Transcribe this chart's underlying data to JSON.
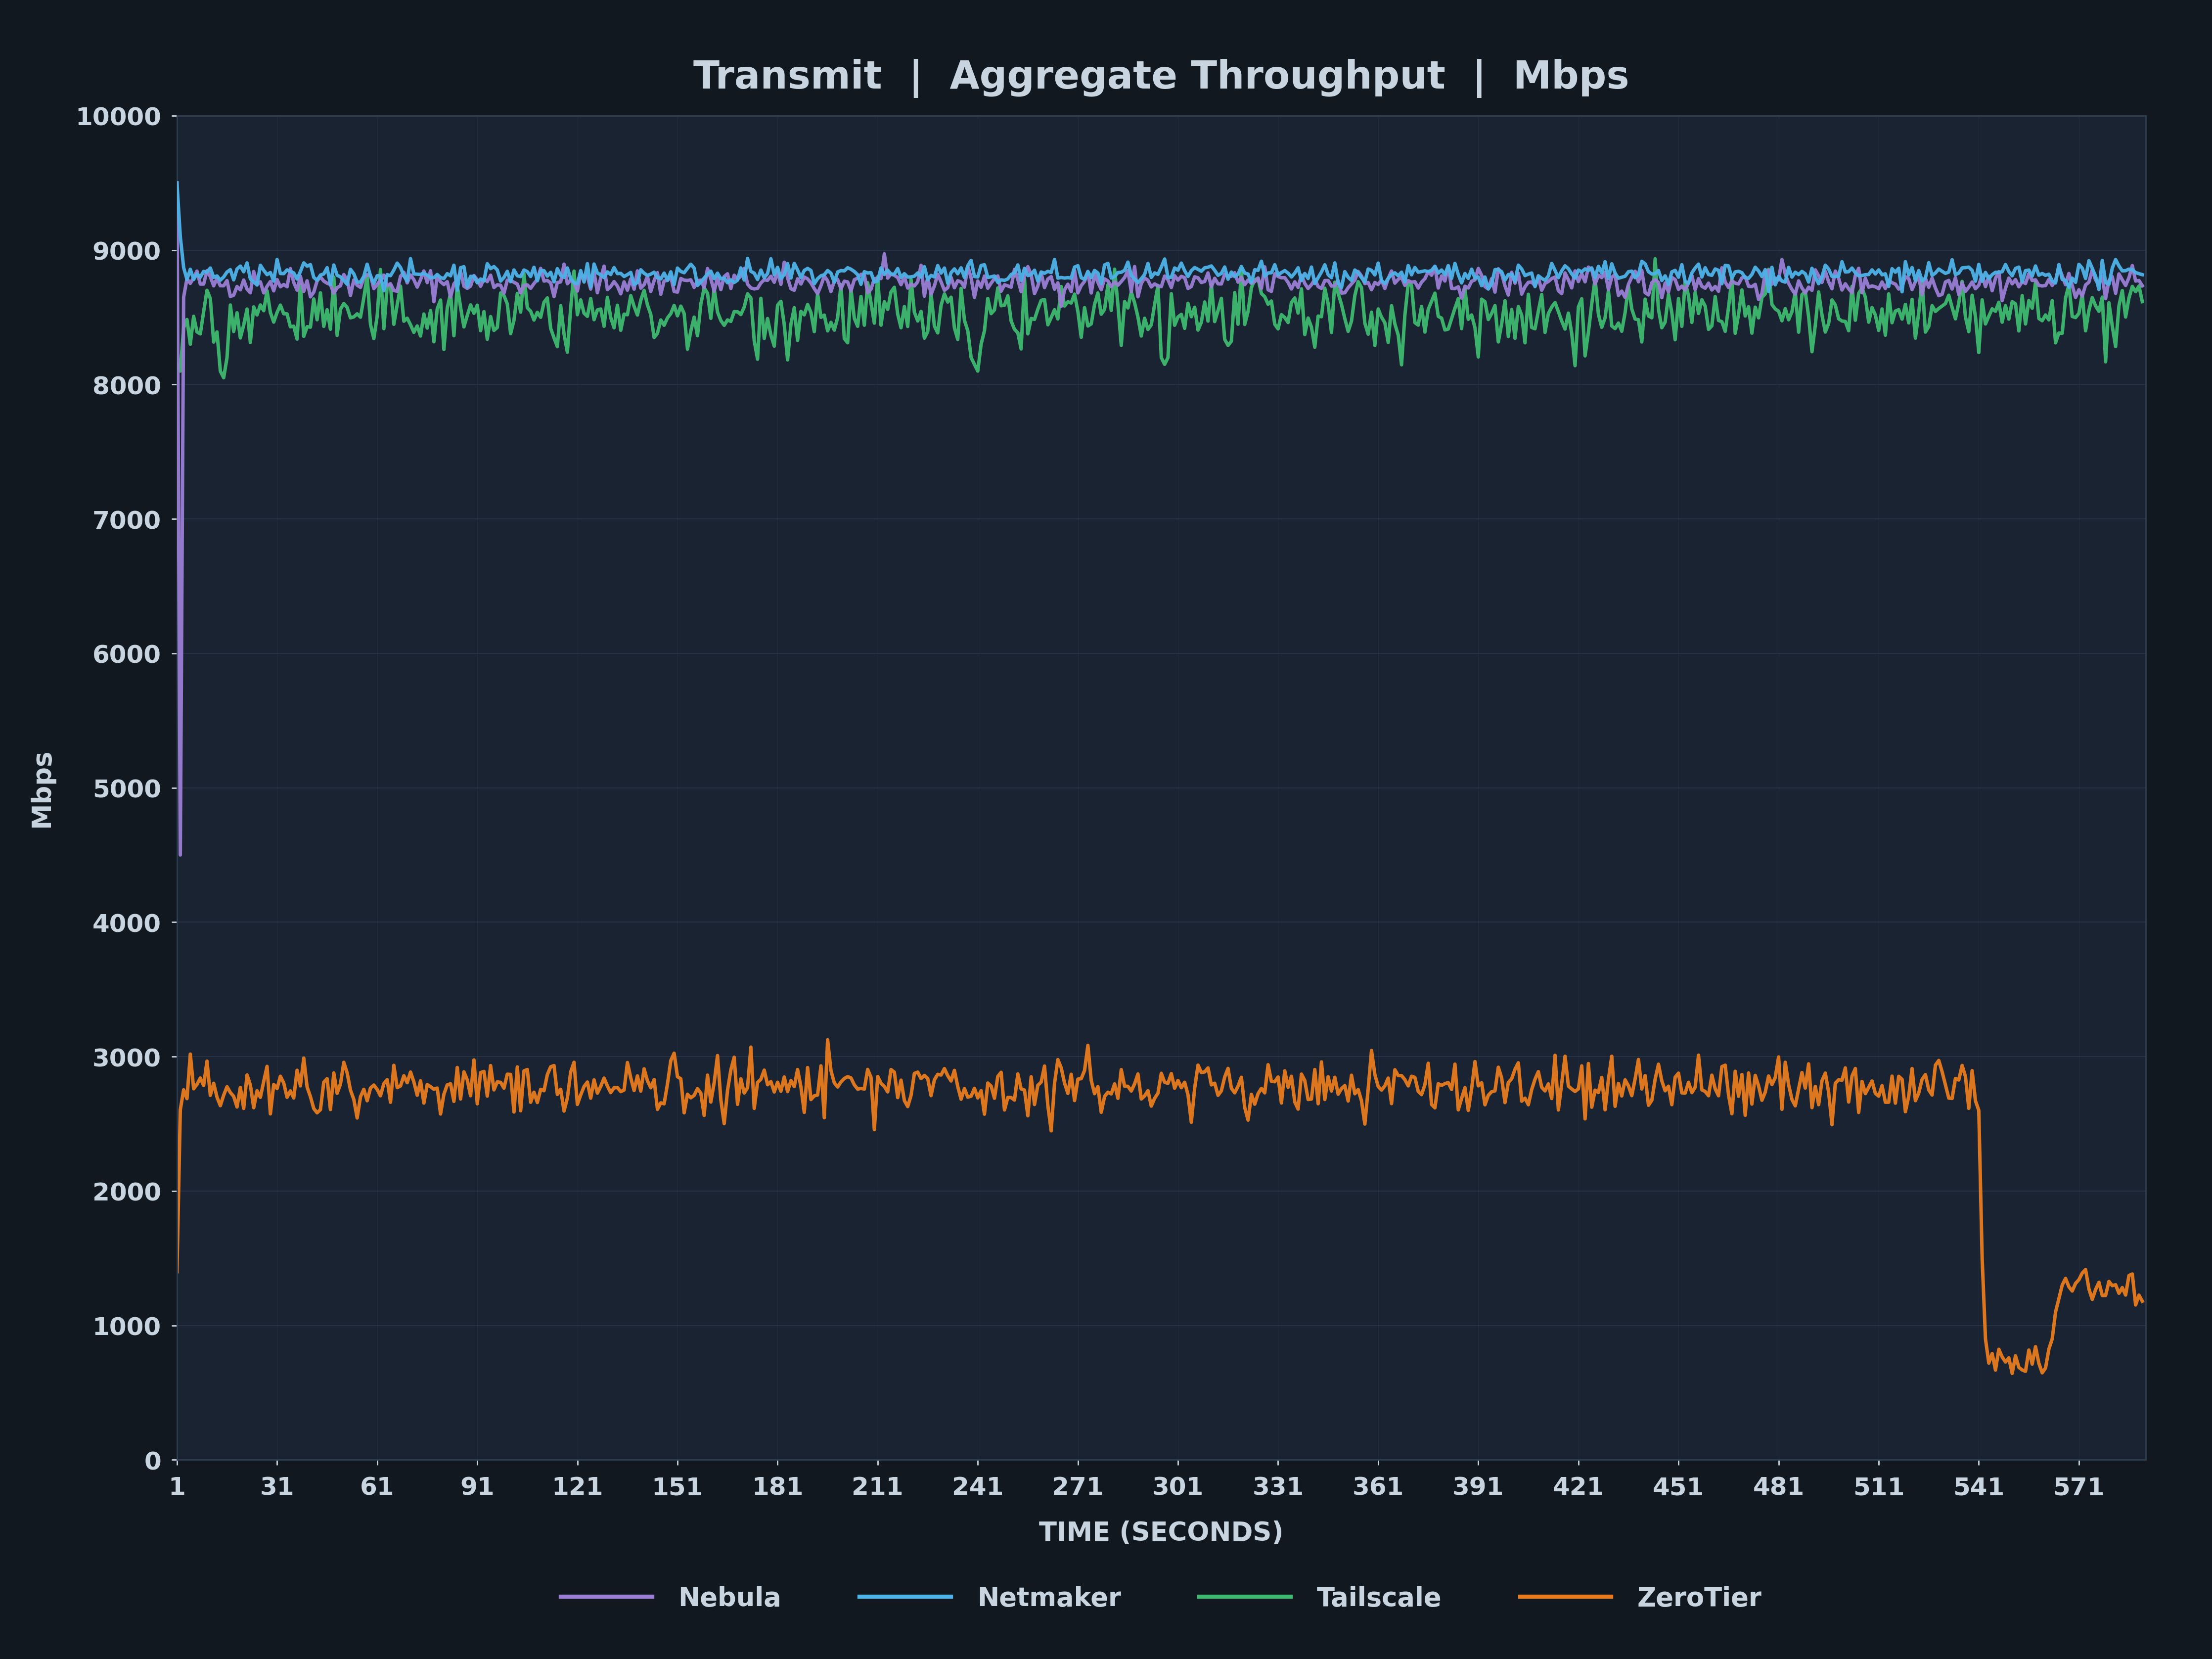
{
  "title": "Transmit  |  Aggregate Throughput  |  Mbps",
  "xlabel": "TIME (SECONDS)",
  "ylabel": "Mbps",
  "bg_color": "#111820",
  "plot_bg_color": "#1a2332",
  "grid_color": "#2e3d4f",
  "text_color": "#c8d4e0",
  "ylim": [
    0,
    10000
  ],
  "xlim": [
    1,
    591
  ],
  "yticks": [
    0,
    1000,
    2000,
    3000,
    4000,
    5000,
    6000,
    7000,
    8000,
    9000,
    10000
  ],
  "xticks": [
    1,
    31,
    61,
    91,
    121,
    151,
    181,
    211,
    241,
    271,
    301,
    331,
    361,
    391,
    421,
    451,
    481,
    511,
    541,
    571
  ],
  "nebula_color": "#9b7fd4",
  "netmaker_color": "#4eb3e8",
  "tailscale_color": "#3dba6f",
  "zerotier_color": "#e87b1e",
  "n_points": 590,
  "nebula_base": 8760,
  "netmaker_base": 8820,
  "tailscale_base": 8520,
  "zerotier_base": 2780,
  "legend_labels": [
    "Nebula",
    "Netmaker",
    "Tailscale",
    "ZeroTier"
  ],
  "title_fontsize": 56,
  "label_fontsize": 38,
  "tick_fontsize": 36,
  "legend_fontsize": 38,
  "line_width": 5.0
}
